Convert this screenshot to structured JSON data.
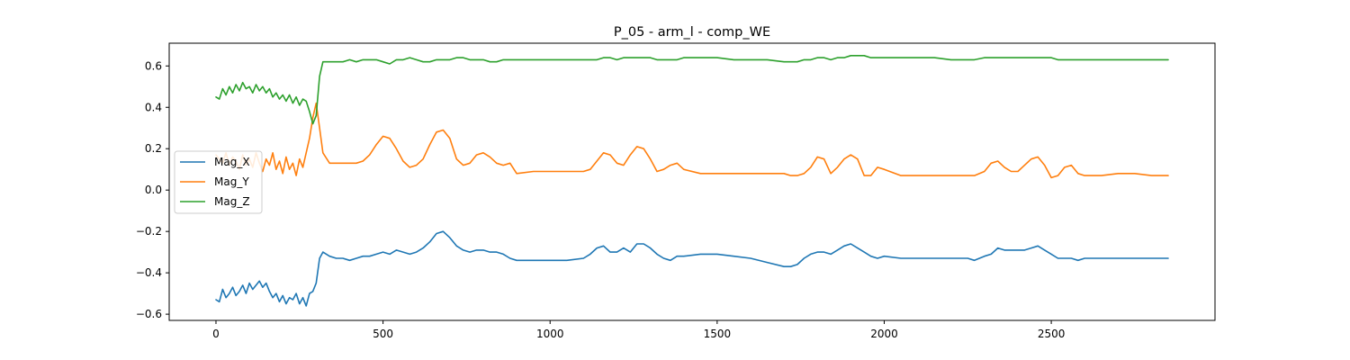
{
  "chart_data": {
    "type": "line",
    "title": "P_05 - arm_l - comp_WE",
    "xlabel": "",
    "ylabel": "",
    "xlim": [
      -140,
      2990
    ],
    "ylim": [
      -0.63,
      0.71
    ],
    "x_ticks": [
      0,
      500,
      1000,
      1500,
      2000,
      2500
    ],
    "x_tick_labels": [
      "0",
      "500",
      "1000",
      "1500",
      "2000",
      "2500"
    ],
    "y_ticks": [
      -0.6,
      -0.4,
      -0.2,
      0.0,
      0.2,
      0.4,
      0.6
    ],
    "y_tick_labels": [
      "−0.6",
      "−0.4",
      "−0.2",
      "0.0",
      "0.2",
      "0.4",
      "0.6"
    ],
    "grid": false,
    "legend_position": "center-left",
    "series": [
      {
        "name": "Mag_X",
        "color": "#1f77b4",
        "x": [
          0,
          10,
          20,
          30,
          40,
          50,
          60,
          70,
          80,
          90,
          100,
          110,
          120,
          130,
          140,
          150,
          160,
          170,
          180,
          190,
          200,
          210,
          220,
          230,
          240,
          250,
          260,
          270,
          280,
          290,
          300,
          310,
          320,
          340,
          360,
          380,
          400,
          420,
          440,
          460,
          480,
          500,
          520,
          540,
          560,
          580,
          600,
          620,
          640,
          660,
          680,
          700,
          720,
          740,
          760,
          780,
          800,
          820,
          840,
          860,
          880,
          900,
          950,
          1000,
          1050,
          1100,
          1120,
          1140,
          1160,
          1180,
          1200,
          1220,
          1240,
          1260,
          1280,
          1300,
          1320,
          1340,
          1360,
          1380,
          1400,
          1450,
          1500,
          1550,
          1600,
          1650,
          1700,
          1720,
          1740,
          1760,
          1780,
          1800,
          1820,
          1840,
          1860,
          1880,
          1900,
          1920,
          1940,
          1960,
          1980,
          2000,
          2050,
          2100,
          2150,
          2200,
          2250,
          2270,
          2300,
          2320,
          2340,
          2360,
          2380,
          2400,
          2420,
          2440,
          2460,
          2480,
          2500,
          2520,
          2540,
          2560,
          2580,
          2600,
          2650,
          2700,
          2750,
          2800,
          2850
        ],
        "y": [
          -0.53,
          -0.54,
          -0.48,
          -0.52,
          -0.5,
          -0.47,
          -0.51,
          -0.49,
          -0.46,
          -0.5,
          -0.45,
          -0.48,
          -0.46,
          -0.44,
          -0.47,
          -0.45,
          -0.49,
          -0.52,
          -0.5,
          -0.54,
          -0.51,
          -0.55,
          -0.52,
          -0.53,
          -0.5,
          -0.55,
          -0.52,
          -0.56,
          -0.5,
          -0.49,
          -0.45,
          -0.33,
          -0.3,
          -0.32,
          -0.33,
          -0.33,
          -0.34,
          -0.33,
          -0.32,
          -0.32,
          -0.31,
          -0.3,
          -0.31,
          -0.29,
          -0.3,
          -0.31,
          -0.3,
          -0.28,
          -0.25,
          -0.21,
          -0.2,
          -0.23,
          -0.27,
          -0.29,
          -0.3,
          -0.29,
          -0.29,
          -0.3,
          -0.3,
          -0.31,
          -0.33,
          -0.34,
          -0.34,
          -0.34,
          -0.34,
          -0.33,
          -0.31,
          -0.28,
          -0.27,
          -0.3,
          -0.3,
          -0.28,
          -0.3,
          -0.26,
          -0.26,
          -0.28,
          -0.31,
          -0.33,
          -0.34,
          -0.32,
          -0.32,
          -0.31,
          -0.31,
          -0.32,
          -0.33,
          -0.35,
          -0.37,
          -0.37,
          -0.36,
          -0.33,
          -0.31,
          -0.3,
          -0.3,
          -0.31,
          -0.29,
          -0.27,
          -0.26,
          -0.28,
          -0.3,
          -0.32,
          -0.33,
          -0.32,
          -0.33,
          -0.33,
          -0.33,
          -0.33,
          -0.33,
          -0.34,
          -0.32,
          -0.31,
          -0.28,
          -0.29,
          -0.29,
          -0.29,
          -0.29,
          -0.28,
          -0.27,
          -0.29,
          -0.31,
          -0.33,
          -0.33,
          -0.33,
          -0.34,
          -0.33,
          -0.33,
          -0.33,
          -0.33,
          -0.33,
          -0.33
        ]
      },
      {
        "name": "Mag_Y",
        "color": "#ff7f0e",
        "x": [
          0,
          10,
          20,
          30,
          40,
          50,
          60,
          70,
          80,
          90,
          100,
          110,
          120,
          130,
          140,
          150,
          160,
          170,
          180,
          190,
          200,
          210,
          220,
          230,
          240,
          250,
          260,
          270,
          280,
          290,
          300,
          310,
          320,
          340,
          360,
          380,
          400,
          420,
          440,
          460,
          480,
          500,
          520,
          540,
          560,
          580,
          600,
          620,
          640,
          660,
          680,
          700,
          720,
          740,
          760,
          780,
          800,
          820,
          840,
          860,
          880,
          900,
          950,
          1000,
          1050,
          1100,
          1120,
          1140,
          1160,
          1180,
          1200,
          1220,
          1240,
          1260,
          1280,
          1300,
          1320,
          1340,
          1360,
          1380,
          1400,
          1450,
          1500,
          1550,
          1600,
          1650,
          1700,
          1720,
          1740,
          1760,
          1780,
          1800,
          1820,
          1840,
          1860,
          1880,
          1900,
          1920,
          1940,
          1960,
          1980,
          2000,
          2050,
          2100,
          2150,
          2200,
          2250,
          2270,
          2300,
          2320,
          2340,
          2360,
          2380,
          2400,
          2420,
          2440,
          2460,
          2480,
          2500,
          2520,
          2540,
          2560,
          2580,
          2600,
          2650,
          2700,
          2750,
          2800,
          2850
        ],
        "y": [
          0.17,
          0.15,
          0.13,
          0.18,
          0.12,
          0.16,
          0.14,
          0.1,
          0.17,
          0.12,
          0.15,
          0.11,
          0.18,
          0.13,
          0.09,
          0.15,
          0.12,
          0.18,
          0.1,
          0.14,
          0.08,
          0.16,
          0.1,
          0.13,
          0.07,
          0.15,
          0.11,
          0.18,
          0.25,
          0.35,
          0.42,
          0.3,
          0.18,
          0.13,
          0.13,
          0.13,
          0.13,
          0.13,
          0.14,
          0.17,
          0.22,
          0.26,
          0.25,
          0.2,
          0.14,
          0.11,
          0.12,
          0.15,
          0.22,
          0.28,
          0.29,
          0.25,
          0.15,
          0.12,
          0.13,
          0.17,
          0.18,
          0.16,
          0.13,
          0.12,
          0.13,
          0.08,
          0.09,
          0.09,
          0.09,
          0.09,
          0.1,
          0.14,
          0.18,
          0.17,
          0.13,
          0.12,
          0.17,
          0.21,
          0.2,
          0.15,
          0.09,
          0.1,
          0.12,
          0.13,
          0.1,
          0.08,
          0.08,
          0.08,
          0.08,
          0.08,
          0.08,
          0.07,
          0.07,
          0.08,
          0.11,
          0.16,
          0.15,
          0.08,
          0.11,
          0.15,
          0.17,
          0.15,
          0.07,
          0.07,
          0.11,
          0.1,
          0.07,
          0.07,
          0.07,
          0.07,
          0.07,
          0.07,
          0.09,
          0.13,
          0.14,
          0.11,
          0.09,
          0.09,
          0.12,
          0.15,
          0.16,
          0.12,
          0.06,
          0.07,
          0.11,
          0.12,
          0.08,
          0.07,
          0.07,
          0.08,
          0.08,
          0.07,
          0.07
        ]
      },
      {
        "name": "Mag_Z",
        "color": "#2ca02c",
        "x": [
          0,
          10,
          20,
          30,
          40,
          50,
          60,
          70,
          80,
          90,
          100,
          110,
          120,
          130,
          140,
          150,
          160,
          170,
          180,
          190,
          200,
          210,
          220,
          230,
          240,
          250,
          260,
          270,
          280,
          290,
          300,
          310,
          320,
          340,
          360,
          380,
          400,
          420,
          440,
          460,
          480,
          500,
          520,
          540,
          560,
          580,
          600,
          620,
          640,
          660,
          680,
          700,
          720,
          740,
          760,
          780,
          800,
          820,
          840,
          860,
          880,
          900,
          950,
          1000,
          1050,
          1100,
          1120,
          1140,
          1160,
          1180,
          1200,
          1220,
          1240,
          1260,
          1280,
          1300,
          1320,
          1340,
          1360,
          1380,
          1400,
          1450,
          1500,
          1550,
          1600,
          1650,
          1700,
          1720,
          1740,
          1760,
          1780,
          1800,
          1820,
          1840,
          1860,
          1880,
          1900,
          1920,
          1940,
          1960,
          1980,
          2000,
          2050,
          2100,
          2150,
          2200,
          2250,
          2270,
          2300,
          2320,
          2340,
          2360,
          2380,
          2400,
          2420,
          2440,
          2460,
          2480,
          2500,
          2520,
          2540,
          2560,
          2580,
          2600,
          2650,
          2700,
          2750,
          2800,
          2850
        ],
        "y": [
          0.45,
          0.44,
          0.49,
          0.46,
          0.5,
          0.47,
          0.51,
          0.48,
          0.52,
          0.49,
          0.5,
          0.47,
          0.51,
          0.48,
          0.5,
          0.47,
          0.49,
          0.45,
          0.47,
          0.44,
          0.46,
          0.43,
          0.46,
          0.42,
          0.45,
          0.41,
          0.44,
          0.43,
          0.38,
          0.32,
          0.36,
          0.55,
          0.62,
          0.62,
          0.62,
          0.62,
          0.63,
          0.62,
          0.63,
          0.63,
          0.63,
          0.62,
          0.61,
          0.63,
          0.63,
          0.64,
          0.63,
          0.62,
          0.62,
          0.63,
          0.63,
          0.63,
          0.64,
          0.64,
          0.63,
          0.63,
          0.63,
          0.62,
          0.62,
          0.63,
          0.63,
          0.63,
          0.63,
          0.63,
          0.63,
          0.63,
          0.63,
          0.63,
          0.64,
          0.64,
          0.63,
          0.64,
          0.64,
          0.64,
          0.64,
          0.64,
          0.63,
          0.63,
          0.63,
          0.63,
          0.64,
          0.64,
          0.64,
          0.63,
          0.63,
          0.63,
          0.62,
          0.62,
          0.62,
          0.63,
          0.63,
          0.64,
          0.64,
          0.63,
          0.64,
          0.64,
          0.65,
          0.65,
          0.65,
          0.64,
          0.64,
          0.64,
          0.64,
          0.64,
          0.64,
          0.63,
          0.63,
          0.63,
          0.64,
          0.64,
          0.64,
          0.64,
          0.64,
          0.64,
          0.64,
          0.64,
          0.64,
          0.64,
          0.64,
          0.63,
          0.63,
          0.63,
          0.63,
          0.63,
          0.63,
          0.63,
          0.63,
          0.63,
          0.63
        ]
      }
    ]
  }
}
